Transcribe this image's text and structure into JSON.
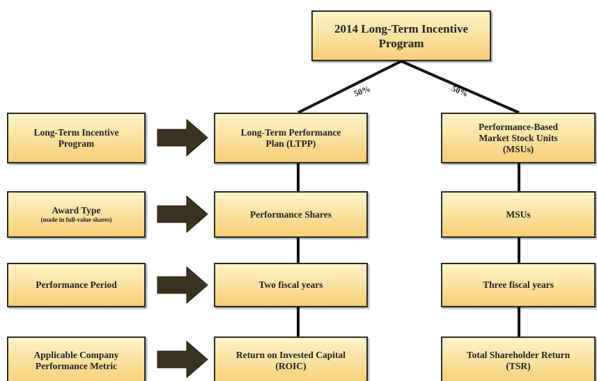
{
  "title": {
    "lines": [
      "2014 Long-Term Incentive",
      "Program"
    ]
  },
  "split_labels": [
    "50%",
    "50%"
  ],
  "rows": [
    {
      "label": {
        "lines": [
          "Long-Term Incentive",
          "Program"
        ]
      },
      "ltpp": {
        "lines": [
          "Long-Term Performance",
          "Plan (LTPP)"
        ]
      },
      "msu": {
        "lines": [
          "Performance-Based",
          "Market  Stock Units",
          "(MSUs)"
        ]
      }
    },
    {
      "label": {
        "lines": [
          "Award Type"
        ],
        "note": "(made in full-value shares)"
      },
      "ltpp": {
        "lines": [
          "Performance Shares"
        ]
      },
      "msu": {
        "lines": [
          "MSUs"
        ]
      }
    },
    {
      "label": {
        "lines": [
          "Performance Period"
        ]
      },
      "ltpp": {
        "lines": [
          "Two fiscal years"
        ]
      },
      "msu": {
        "lines": [
          "Three fiscal years"
        ]
      }
    },
    {
      "label": {
        "lines": [
          "Applicable Company",
          "Performance Metric"
        ]
      },
      "ltpp": {
        "lines": [
          "Return on Invested Capital",
          "(ROIC)"
        ]
      },
      "msu": {
        "lines": [
          "Total Shareholder Return",
          "(TSR)"
        ]
      }
    }
  ]
}
